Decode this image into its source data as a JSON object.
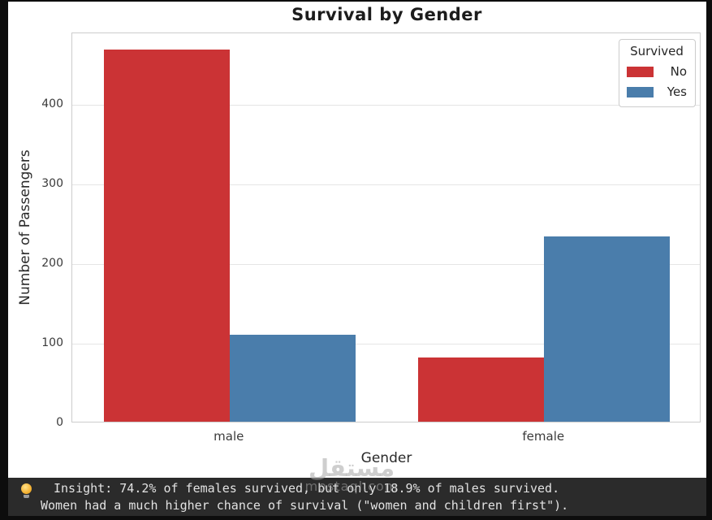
{
  "chart_data": {
    "type": "bar",
    "title": "Survival by Gender",
    "xlabel": "Gender",
    "ylabel": "Number of Passengers",
    "categories": [
      "male",
      "female"
    ],
    "series": [
      {
        "name": "No",
        "color": "#cb3335",
        "values": [
          468,
          81
        ]
      },
      {
        "name": "Yes",
        "color": "#4a7dab",
        "values": [
          109,
          233
        ]
      }
    ],
    "legend": {
      "title": "Survived",
      "position": "upper right"
    },
    "ylim": [
      0,
      490
    ],
    "yticks": [
      0,
      100,
      200,
      300,
      400
    ],
    "grid": "horizontal"
  },
  "insight_bar": {
    "icon": "lightbulb-icon",
    "bg": "#2b2b2b",
    "text_color": "#e2e2e2",
    "lines": [
      "Insight: 74.2% of females survived, but only 18.9% of males survived.",
      "Women had a much higher chance of survival (\"women and children first\")."
    ]
  },
  "watermark": {
    "arabic": "مستقل",
    "domain": "mostaql.com"
  }
}
